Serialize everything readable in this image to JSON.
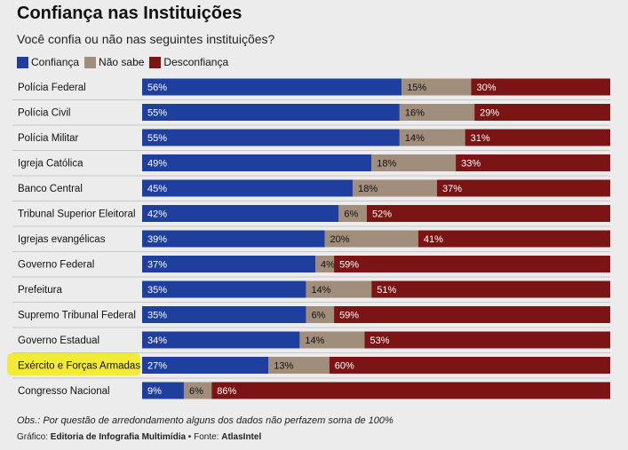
{
  "header": {
    "title": "Confiança nas Instituições",
    "subtitle": "Você confia ou não nas seguintes instituições?"
  },
  "colors": {
    "confianca": "#1f3f9e",
    "nao_sabe": "#a08d7b",
    "desconfianca": "#7b1414",
    "highlight": "#f2ea36",
    "row_line": "#c8c8c8"
  },
  "chart_data": {
    "type": "bar",
    "orientation": "horizontal",
    "stacked": true,
    "legend_position": "top-left",
    "categories": [
      "Polícia Federal",
      "Polícia Civil",
      "Polícia Militar",
      "Igreja Católica",
      "Banco Central",
      "Tribunal Superior Eleitoral",
      "Igrejas evangélicas",
      "Governo Federal",
      "Prefeitura",
      "Supremo Tribunal Federal",
      "Governo Estadual",
      "Exército e Forças Armadas",
      "Congresso Nacional"
    ],
    "highlighted_category": "Exército e Forças Armadas",
    "series": [
      {
        "name": "Confiança",
        "color": "#1f3f9e",
        "values": [
          56,
          55,
          55,
          49,
          45,
          42,
          39,
          37,
          35,
          35,
          34,
          27,
          9
        ]
      },
      {
        "name": "Não sabe",
        "color": "#a08d7b",
        "values": [
          15,
          16,
          14,
          18,
          18,
          6,
          20,
          4,
          14,
          6,
          14,
          13,
          6
        ]
      },
      {
        "name": "Desconfiança",
        "color": "#7b1414",
        "values": [
          30,
          29,
          31,
          33,
          37,
          52,
          41,
          59,
          51,
          59,
          53,
          60,
          86
        ]
      }
    ],
    "label_format": "{v}%"
  },
  "footer": {
    "note": "Obs.: Por questão de arredondamento alguns dos dados não perfazem soma de 100%",
    "source_prefix": "Gráfico: ",
    "source_author": "Editoria de Infografia Multimídia",
    "source_sep": " • Fonte: ",
    "source_name": "AtlasIntel"
  }
}
